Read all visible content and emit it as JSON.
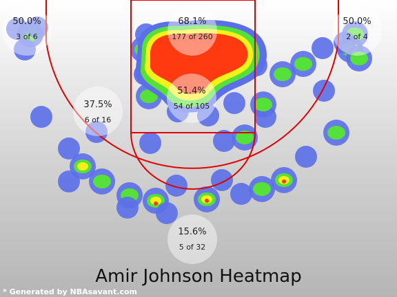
{
  "chart_data": {
    "type": "heatmap",
    "title": "Amir Johnson Heatmap",
    "credit": "* Generated by NBAsavant.com",
    "colors": {
      "background_top": "#ffffff",
      "background_bottom": "#b9b9b9",
      "court_lines": "#e00000",
      "cold": "#5b6fe8",
      "cool": "#56e03a",
      "warm": "#f2f21a",
      "hot": "#ff3a10"
    },
    "zones": [
      {
        "key": "left-corner-three",
        "pct": "50.0%",
        "made_of": "3 of 6",
        "made": 3,
        "attempts": 6
      },
      {
        "key": "paint",
        "pct": "68.1%",
        "made_of": "177 of 260",
        "made": 177,
        "attempts": 260
      },
      {
        "key": "right-corner-three",
        "pct": "50.0%",
        "made_of": "2 of 4",
        "made": 2,
        "attempts": 4
      },
      {
        "key": "mid-range-left",
        "pct": "37.5%",
        "made_of": "6 of 16",
        "made": 6,
        "attempts": 16
      },
      {
        "key": "short-mid-range",
        "pct": "51.4%",
        "made_of": "54 of 105",
        "made": 54,
        "attempts": 105
      },
      {
        "key": "top-of-key-three",
        "pct": "15.6%",
        "made_of": "5 of 32",
        "made": 5,
        "attempts": 32
      }
    ]
  }
}
